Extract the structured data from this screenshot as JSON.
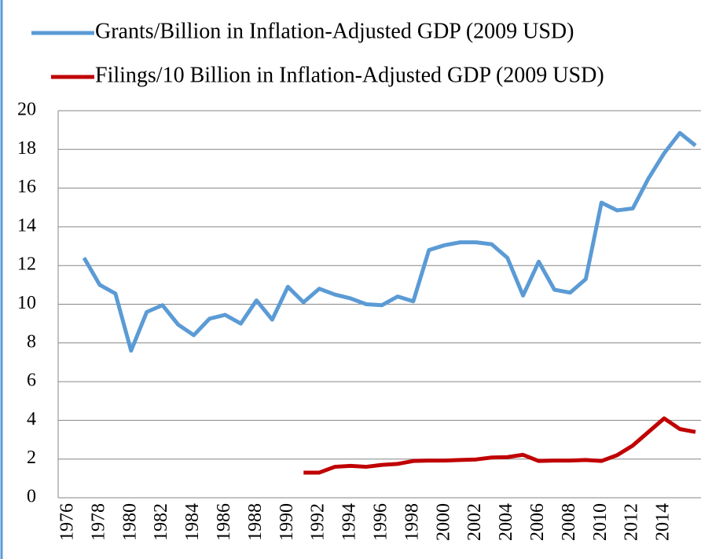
{
  "chart_data": {
    "type": "line",
    "categories": [
      "1976",
      null,
      "1978",
      null,
      "1980",
      null,
      "1982",
      null,
      "1984",
      null,
      "1986",
      null,
      "1988",
      null,
      "1990",
      null,
      "1992",
      null,
      "1994",
      null,
      "1996",
      null,
      "1998",
      null,
      "2000",
      null,
      "2002",
      null,
      "2004",
      null,
      "2006",
      null,
      "2008",
      null,
      "2010",
      null,
      "2012",
      null,
      "2014",
      null,
      null
    ],
    "series": [
      {
        "name": "Grants/Billion in Inflation-Adjusted GDP (2009 USD)",
        "color": "#5b9bd5",
        "values": [
          null,
          12.4,
          11.0,
          10.55,
          7.6,
          9.6,
          9.95,
          8.95,
          8.4,
          9.25,
          9.45,
          9.0,
          10.2,
          9.2,
          10.9,
          10.1,
          10.8,
          10.5,
          10.3,
          10.0,
          9.95,
          10.4,
          10.15,
          12.8,
          13.05,
          13.2,
          13.2,
          13.1,
          12.4,
          10.45,
          12.2,
          10.75,
          10.6,
          11.3,
          15.25,
          14.85,
          14.95,
          16.5,
          17.8,
          18.85,
          18.2
        ]
      },
      {
        "name": "Filings/10 Billion in Inflation-Adjusted GDP (2009 USD)",
        "color": "#c00000",
        "values": [
          null,
          null,
          null,
          null,
          null,
          null,
          null,
          null,
          null,
          null,
          null,
          null,
          null,
          null,
          null,
          1.3,
          1.3,
          1.6,
          1.65,
          1.6,
          1.7,
          1.75,
          1.9,
          1.92,
          1.92,
          1.95,
          1.98,
          2.08,
          2.1,
          2.22,
          1.9,
          1.92,
          1.92,
          1.95,
          1.9,
          2.2,
          2.7,
          3.4,
          4.1,
          3.55,
          3.4
        ]
      }
    ],
    "ylim": [
      0,
      20
    ],
    "yticks": [
      0,
      2,
      4,
      6,
      8,
      10,
      12,
      14,
      16,
      18,
      20
    ],
    "grid": true,
    "legend": "top-left"
  }
}
